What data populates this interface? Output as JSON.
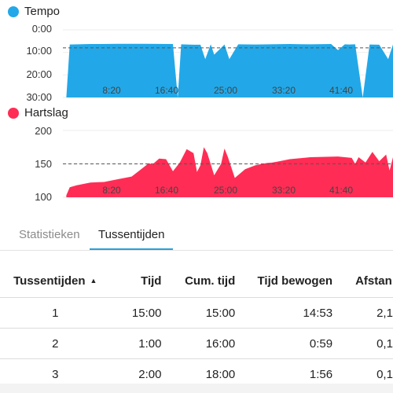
{
  "tempo": {
    "legend": "Tempo",
    "color": "#22a8e8",
    "y_ticks": [
      "0:00",
      "10:00",
      "20:00",
      "30:00"
    ],
    "x_ticks": [
      "8:20",
      "16:40",
      "25:00",
      "33:20",
      "41:40"
    ]
  },
  "hartslag": {
    "legend": "Hartslag",
    "color": "#ff2d55",
    "y_ticks": [
      "200",
      "150",
      "100"
    ],
    "x_ticks": [
      "8:20",
      "16:40",
      "25:00",
      "33:20",
      "41:40"
    ]
  },
  "tabs": [
    "Statistieken",
    "Tussentijden"
  ],
  "active_tab": "Tussentijden",
  "table": {
    "headers": [
      "Tussentijden",
      "Tijd",
      "Cum. tijd",
      "Tijd bewogen",
      "Afstan"
    ],
    "rows": [
      [
        "1",
        "15:00",
        "15:00",
        "14:53",
        "2,1"
      ],
      [
        "2",
        "1:00",
        "16:00",
        "0:59",
        "0,1"
      ],
      [
        "3",
        "2:00",
        "18:00",
        "1:56",
        "0,1"
      ]
    ]
  },
  "chart_data": [
    {
      "type": "area",
      "title": "Tempo",
      "ylabel": "",
      "xlabel": "",
      "y_tick_labels": [
        "0:00",
        "10:00",
        "20:00",
        "30:00"
      ],
      "x_tick_labels": [
        "8:20",
        "16:40",
        "25:00",
        "33:20",
        "41:40"
      ],
      "y_axis_inverted": true,
      "ylim_min_per_km": [
        0,
        30
      ],
      "average_line_min": 8.0,
      "series": [
        {
          "name": "Tempo",
          "x_min": [
            0.5,
            1,
            4,
            8,
            12,
            16,
            16.7,
            17.2,
            18,
            19,
            20,
            20.7,
            21.5,
            22,
            23.5,
            24.2,
            25.5,
            28,
            30,
            33,
            36,
            39,
            40,
            41,
            41.6,
            42.5,
            43.6,
            44.6,
            46,
            47.3,
            48
          ],
          "y_min_per_km": [
            30,
            6.5,
            6.3,
            6.2,
            6.2,
            6.3,
            30,
            6.4,
            6.5,
            6.6,
            6.6,
            13,
            6.4,
            11,
            6.5,
            13,
            6.4,
            6.5,
            6.4,
            6.3,
            6.4,
            6.3,
            9,
            6.4,
            6.5,
            6.4,
            30,
            6.5,
            6.6,
            13,
            6.5
          ]
        }
      ]
    },
    {
      "type": "area",
      "title": "Hartslag",
      "ylabel": "",
      "xlabel": "",
      "y_tick_labels": [
        "200",
        "150",
        "100"
      ],
      "x_tick_labels": [
        "8:20",
        "16:40",
        "25:00",
        "33:20",
        "41:40"
      ],
      "ylim": [
        100,
        200
      ],
      "average_line": 150,
      "series": [
        {
          "name": "Hartslag",
          "x_min": [
            0.5,
            1,
            2,
            4,
            6,
            8,
            10,
            11,
            12,
            12.5,
            13,
            14,
            15,
            16,
            17,
            18,
            19,
            19.5,
            20,
            20.5,
            21,
            22,
            23,
            23.5,
            24,
            25,
            26.5,
            28,
            29.5,
            30.5,
            31.5,
            33,
            36,
            40,
            42,
            42.5,
            43,
            44,
            45,
            46,
            47,
            47.5,
            48
          ],
          "values": [
            103,
            115,
            118,
            122,
            123,
            127,
            131,
            139,
            147,
            151,
            149,
            158,
            157,
            139,
            152,
            172,
            166,
            138,
            148,
            175,
            166,
            133,
            150,
            173,
            160,
            129,
            142,
            148,
            151,
            152,
            154,
            157,
            160,
            161,
            159,
            150,
            160,
            152,
            168,
            154,
            164,
            140,
            160
          ]
        }
      ]
    }
  ]
}
